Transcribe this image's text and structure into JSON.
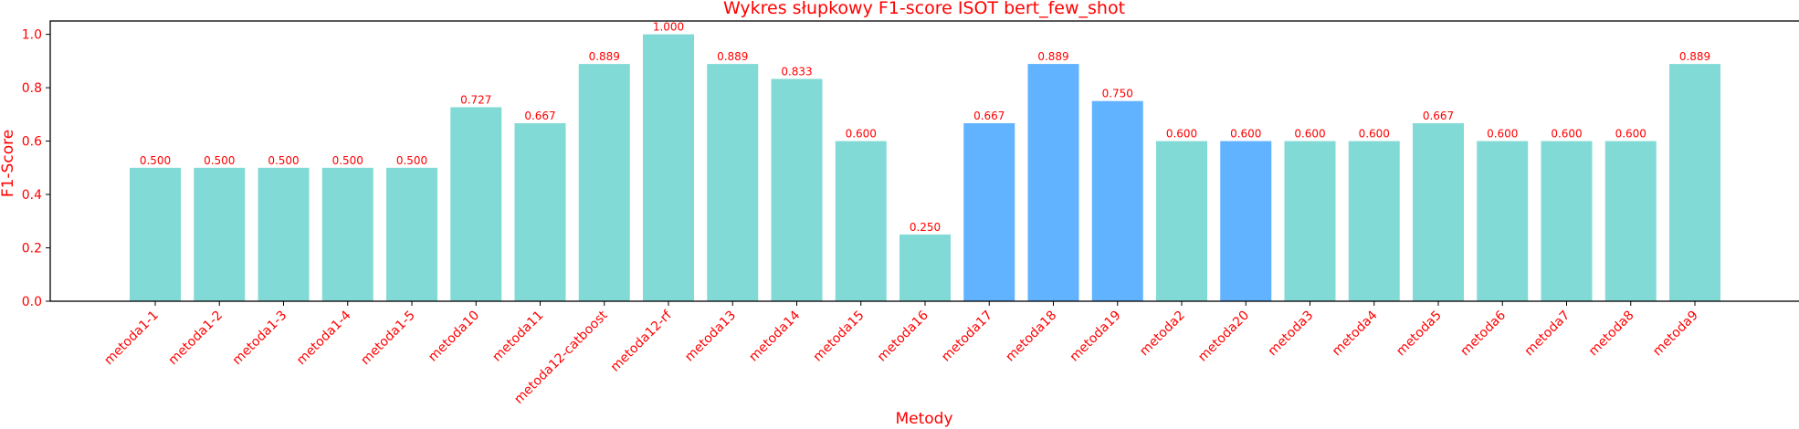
{
  "chart_data": {
    "type": "bar",
    "title": "Wykres słupkowy F1-score ISOT bert_few_shot",
    "xlabel": "Metody",
    "ylabel": "F1-Score",
    "ylim": [
      0,
      1.05
    ],
    "yticks": [
      "0.0",
      "0.2",
      "0.4",
      "0.6",
      "0.8",
      "1.0"
    ],
    "grid": false,
    "categories": [
      "metoda1-1",
      "metoda1-2",
      "metoda1-3",
      "metoda1-4",
      "metoda1-5",
      "metoda10",
      "metoda11",
      "metoda12-catboost",
      "metoda12-rf",
      "metoda13",
      "metoda14",
      "metoda15",
      "metoda16",
      "metoda17",
      "metoda18",
      "metoda19",
      "metoda2",
      "metoda20",
      "metoda3",
      "metoda4",
      "metoda5",
      "metoda6",
      "metoda7",
      "metoda8",
      "metoda9"
    ],
    "values": [
      0.5,
      0.5,
      0.5,
      0.5,
      0.5,
      0.727,
      0.667,
      0.889,
      1.0,
      0.889,
      0.833,
      0.6,
      0.25,
      0.667,
      0.889,
      0.75,
      0.6,
      0.6,
      0.6,
      0.6,
      0.667,
      0.6,
      0.6,
      0.6,
      0.889
    ],
    "labels": [
      "0.500",
      "0.500",
      "0.500",
      "0.500",
      "0.500",
      "0.727",
      "0.667",
      "0.889",
      "1.000",
      "0.889",
      "0.833",
      "0.600",
      "0.250",
      "0.667",
      "0.889",
      "0.750",
      "0.600",
      "0.600",
      "0.600",
      "0.600",
      "0.667",
      "0.600",
      "0.600",
      "0.600",
      "0.889"
    ],
    "highlighted": [
      "metoda17",
      "metoda18",
      "metoda19",
      "metoda20"
    ]
  },
  "colors": {
    "bar": "#82dad6",
    "bar_highlight": "#61b2ff",
    "text": "#ff0000",
    "axis": "#000000"
  }
}
